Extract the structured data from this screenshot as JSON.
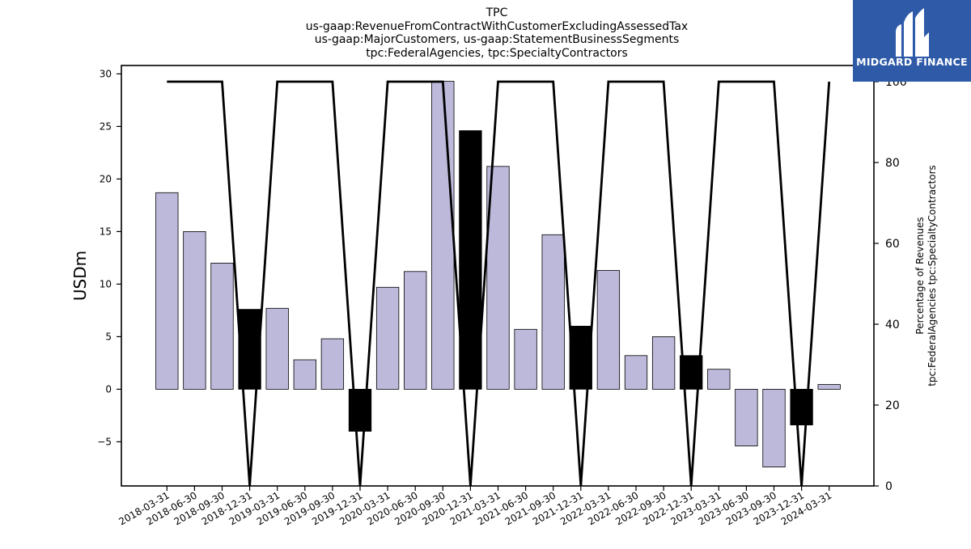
{
  "chart_data": {
    "type": "bar",
    "title_lines": [
      "TPC",
      "us-gaap:RevenueFromContractWithCustomerExcludingAssessedTax",
      "us-gaap:MajorCustomers, us-gaap:StatementBusinessSegments",
      "tpc:FederalAgencies, tpc:SpecialtyContractors"
    ],
    "categories": [
      "2018-03-31",
      "2018-06-30",
      "2018-09-30",
      "2018-12-31",
      "2019-03-31",
      "2019-06-30",
      "2019-09-30",
      "2019-12-31",
      "2020-03-31",
      "2020-06-30",
      "2020-09-30",
      "2020-12-31",
      "2021-03-31",
      "2021-06-30",
      "2021-09-30",
      "2021-12-31",
      "2022-03-31",
      "2022-06-30",
      "2022-09-30",
      "2022-12-31",
      "2023-03-31",
      "2023-06-30",
      "2023-09-30",
      "2023-12-31",
      "2024-03-31"
    ],
    "bar_values": [
      18.7,
      15.0,
      12.0,
      7.6,
      7.7,
      2.8,
      4.8,
      -4.0,
      9.7,
      11.2,
      29.3,
      24.6,
      21.2,
      5.7,
      14.7,
      6.0,
      11.3,
      3.2,
      5.0,
      3.2,
      1.9,
      -5.4,
      -7.4,
      -3.4,
      0.45
    ],
    "bar_highlight": [
      false,
      false,
      false,
      true,
      false,
      false,
      false,
      true,
      false,
      false,
      false,
      true,
      false,
      false,
      false,
      true,
      false,
      false,
      false,
      true,
      false,
      false,
      false,
      true,
      false
    ],
    "line_values": [
      100,
      100,
      100,
      0,
      100,
      100,
      100,
      0,
      100,
      100,
      100,
      0,
      100,
      100,
      100,
      0,
      100,
      100,
      100,
      0,
      100,
      100,
      100,
      0,
      100
    ],
    "ylabel": "USDm",
    "y2label_lines": [
      "Percentage of Revenues",
      "tpc:FederalAgencies tpc:SpecialtyContractors"
    ],
    "ylim": [
      -9.2,
      30.8
    ],
    "y2lim": [
      0,
      104
    ],
    "yticks": [
      -5,
      0,
      5,
      10,
      15,
      20,
      25,
      30
    ],
    "yticklabels": [
      "−5",
      "0",
      "5",
      "10",
      "15",
      "20",
      "25",
      "30"
    ],
    "y2ticks": [
      0,
      20,
      40,
      60,
      80,
      100
    ],
    "y2ticklabels": [
      "0",
      "20",
      "40",
      "60",
      "80",
      "100"
    ],
    "grid": false,
    "colors": {
      "bar": "#bcb9da",
      "bar_highlight": "#000000",
      "line": "#000000",
      "logo_bg": "#2e5aa8"
    }
  },
  "logo": {
    "text": "MIDGARD FINANCE",
    "icon": "midgard-logo-icon"
  }
}
